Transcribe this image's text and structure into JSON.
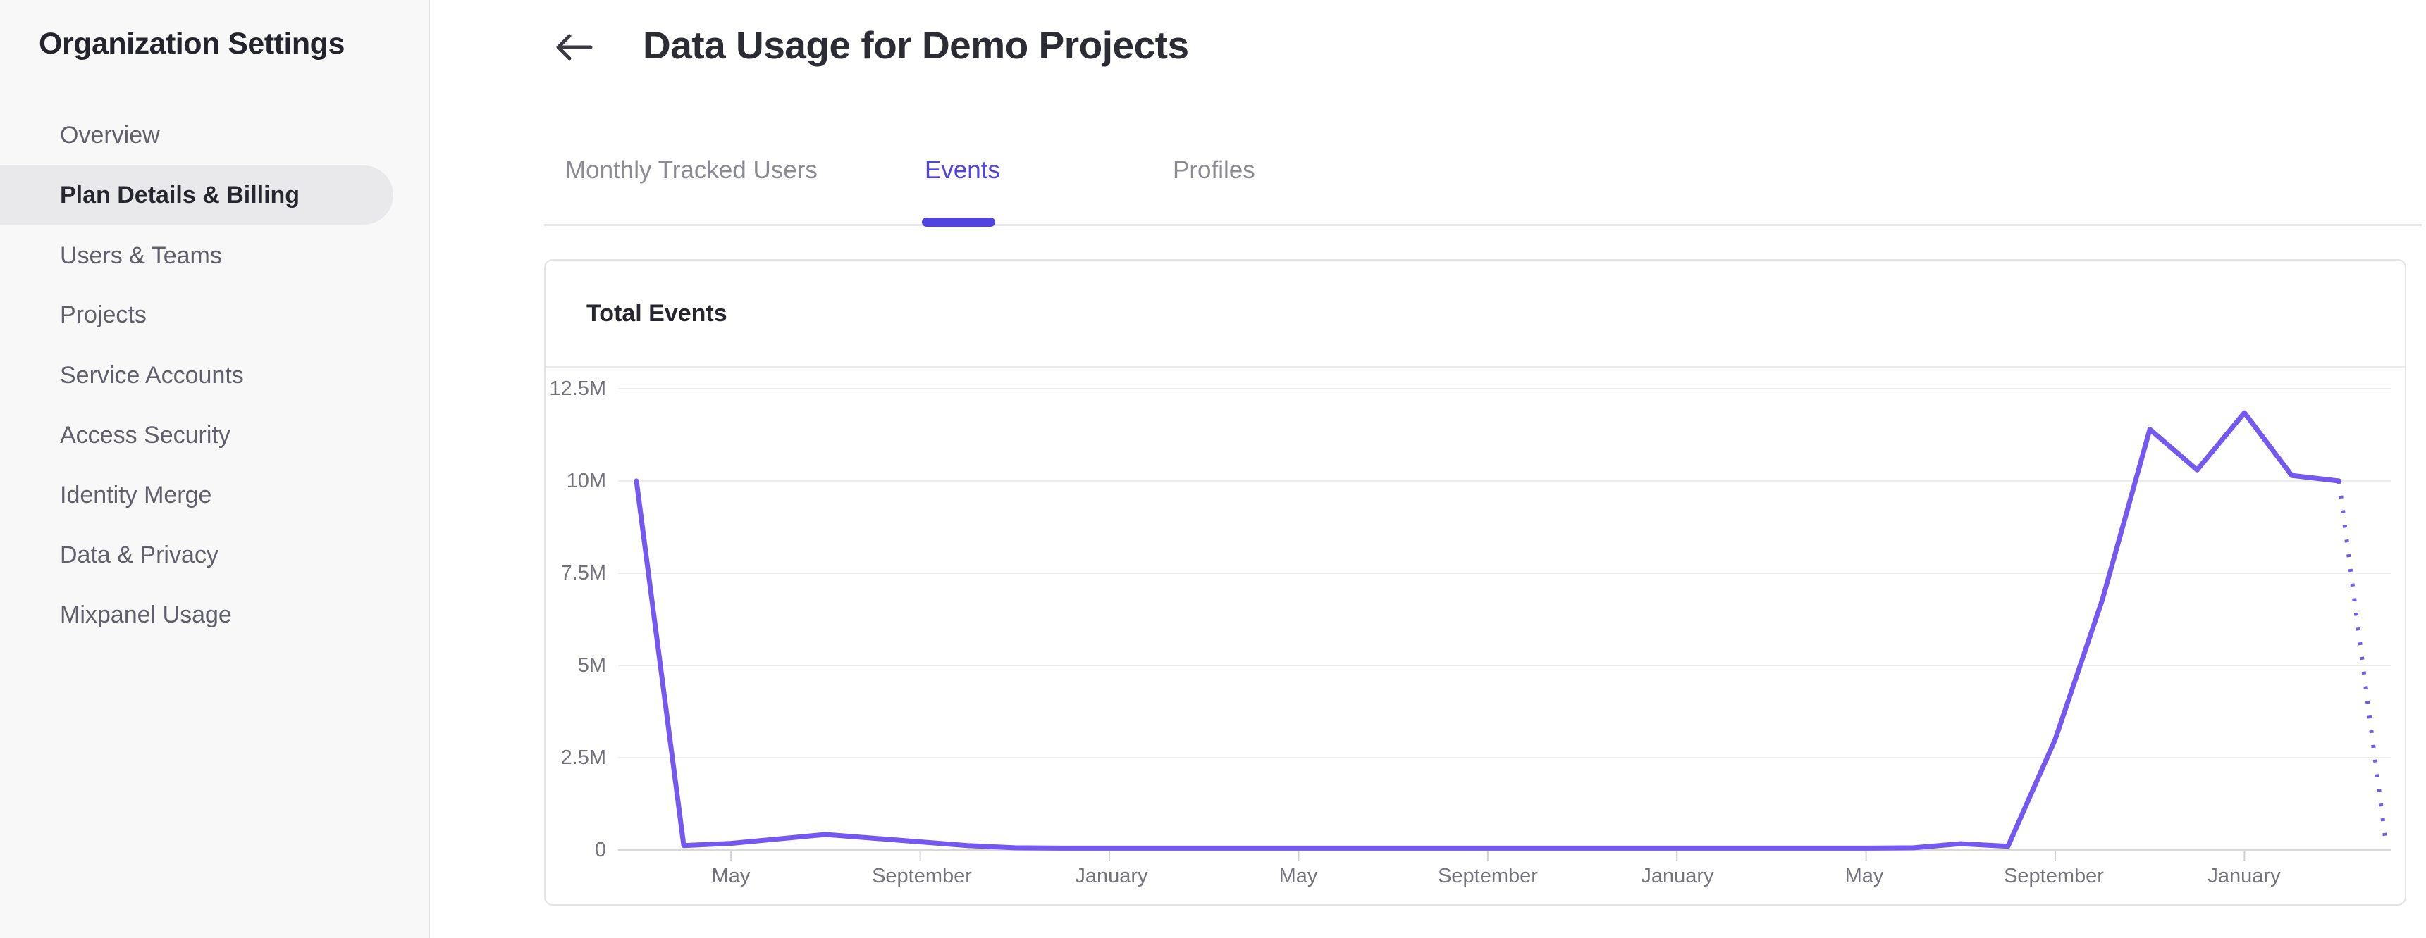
{
  "sidebar": {
    "title": "Organization Settings",
    "items": [
      {
        "label": "Overview",
        "active": false
      },
      {
        "label": "Plan Details & Billing",
        "active": true
      },
      {
        "label": "Users & Teams",
        "active": false
      },
      {
        "label": "Projects",
        "active": false
      },
      {
        "label": "Service Accounts",
        "active": false
      },
      {
        "label": "Access Security",
        "active": false
      },
      {
        "label": "Identity Merge",
        "active": false
      },
      {
        "label": "Data & Privacy",
        "active": false
      },
      {
        "label": "Mixpanel Usage",
        "active": false
      }
    ]
  },
  "header": {
    "title": "Data Usage for Demo Projects",
    "back_icon": "left-arrow"
  },
  "tabs": [
    {
      "label": "Monthly Tracked Users",
      "active": false
    },
    {
      "label": "Events",
      "active": true
    },
    {
      "label": "Profiles",
      "active": false
    }
  ],
  "card": {
    "title": "Total Events"
  },
  "colors": {
    "accent_purple": "#4f44e0",
    "chart_line_purple": "#7558f0",
    "sidebar_bg": "#f8f8f9",
    "active_item_bg": "#e9e9ec",
    "gridline": "#ededf0",
    "axis_text": "#73737c"
  },
  "chart_data": {
    "type": "line",
    "title": "Total Events",
    "unit": "events (millions)",
    "granularity": "monthly",
    "ylim": [
      0,
      12.5
    ],
    "grid": true,
    "legend": "none",
    "y_tick_labels": [
      "12.5M",
      "10M",
      "7.5M",
      "5M",
      "2.5M",
      "0"
    ],
    "y_tick_values_millions": [
      12.5,
      10,
      7.5,
      5,
      2.5,
      0
    ],
    "x_tick_labels": [
      "May",
      "September",
      "January",
      "May",
      "September",
      "January",
      "May",
      "September",
      "January"
    ],
    "x_tick_month_indices": [
      2,
      6,
      10,
      14,
      18,
      22,
      26,
      30,
      34
    ],
    "values_millions": [
      10.0,
      0.12,
      0.18,
      0.3,
      0.42,
      0.32,
      0.22,
      0.12,
      0.06,
      0.05,
      0.05,
      0.05,
      0.05,
      0.05,
      0.05,
      0.05,
      0.05,
      0.05,
      0.05,
      0.05,
      0.05,
      0.05,
      0.05,
      0.05,
      0.05,
      0.05,
      0.05,
      0.06,
      0.17,
      0.1,
      3.0,
      6.8,
      11.4,
      10.3,
      11.85,
      10.15,
      10.0,
      0.1
    ],
    "last_segment_projected_dotted": true,
    "line_color": "#7558f0"
  }
}
